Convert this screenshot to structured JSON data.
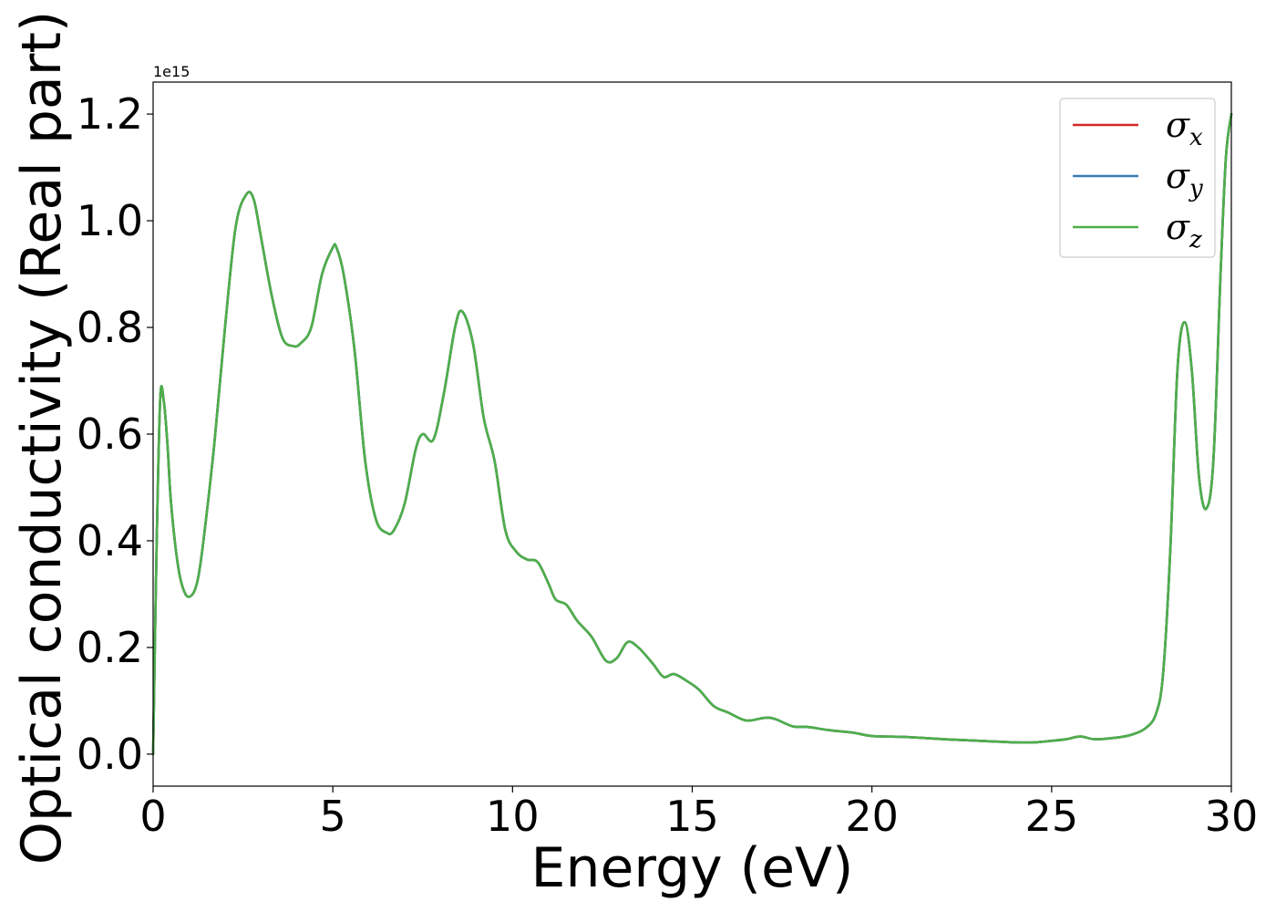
{
  "chart_data": {
    "type": "line",
    "title": "",
    "xlabel": "Energy (eV)",
    "ylabel": "Optical conductivity (Real part)",
    "y_offset_text": "1e15",
    "xlim": [
      0,
      30
    ],
    "ylim": [
      -0.06,
      1.26
    ],
    "xticks": [
      0,
      5,
      10,
      15,
      20,
      25,
      30
    ],
    "xtick_labels": [
      "0",
      "5",
      "10",
      "15",
      "20",
      "25",
      "30"
    ],
    "yticks": [
      0.0,
      0.2,
      0.4,
      0.6,
      0.8,
      1.0,
      1.2
    ],
    "ytick_labels": [
      "0.0",
      "0.2",
      "0.4",
      "0.6",
      "0.8",
      "1.0",
      "1.2"
    ],
    "grid": false,
    "legend_position": "top-right",
    "x": [
      0,
      0.1,
      0.2,
      0.3,
      0.4,
      0.5,
      0.7,
      0.9,
      1.1,
      1.25,
      1.4,
      1.7,
      2.0,
      2.3,
      2.6,
      2.8,
      3.0,
      3.3,
      3.6,
      3.9,
      4.1,
      4.4,
      4.7,
      5.0,
      5.1,
      5.3,
      5.6,
      5.9,
      6.2,
      6.5,
      6.7,
      7.0,
      7.3,
      7.5,
      7.8,
      8.1,
      8.4,
      8.6,
      8.9,
      9.2,
      9.5,
      9.8,
      10.1,
      10.4,
      10.7,
      11.0,
      11.2,
      11.5,
      11.8,
      12.2,
      12.6,
      12.9,
      13.2,
      13.5,
      13.9,
      14.2,
      14.5,
      14.9,
      15.2,
      15.6,
      16.0,
      16.5,
      17.0,
      17.3,
      17.8,
      18.2,
      18.8,
      19.5,
      20.0,
      21.0,
      22.0,
      23.0,
      24.0,
      24.5,
      25.0,
      25.4,
      25.8,
      26.2,
      26.8,
      27.2,
      27.6,
      27.9,
      28.1,
      28.3,
      28.5,
      28.7,
      28.9,
      29.1,
      29.3,
      29.5,
      29.7,
      29.85,
      30.0
    ],
    "series": [
      {
        "name": "σ_x",
        "label_base": "σ",
        "label_sub": "x",
        "color": "#d62728",
        "y": [
          0.0,
          0.4,
          0.67,
          0.66,
          0.58,
          0.47,
          0.35,
          0.3,
          0.3,
          0.33,
          0.4,
          0.58,
          0.8,
          0.99,
          1.05,
          1.04,
          0.97,
          0.86,
          0.78,
          0.765,
          0.77,
          0.8,
          0.9,
          0.95,
          0.95,
          0.9,
          0.76,
          0.55,
          0.44,
          0.415,
          0.42,
          0.47,
          0.57,
          0.6,
          0.59,
          0.68,
          0.8,
          0.83,
          0.77,
          0.63,
          0.55,
          0.42,
          0.38,
          0.365,
          0.36,
          0.32,
          0.29,
          0.28,
          0.25,
          0.22,
          0.175,
          0.18,
          0.21,
          0.2,
          0.17,
          0.145,
          0.15,
          0.135,
          0.12,
          0.09,
          0.078,
          0.063,
          0.068,
          0.066,
          0.052,
          0.051,
          0.045,
          0.04,
          0.034,
          0.032,
          0.028,
          0.025,
          0.022,
          0.022,
          0.025,
          0.028,
          0.033,
          0.028,
          0.031,
          0.036,
          0.048,
          0.075,
          0.15,
          0.38,
          0.72,
          0.81,
          0.72,
          0.52,
          0.46,
          0.55,
          0.9,
          1.12,
          1.2
        ]
      },
      {
        "name": "σ_y",
        "label_base": "σ",
        "label_sub": "y",
        "color": "#377eb8",
        "y": [
          0.0,
          0.4,
          0.67,
          0.66,
          0.58,
          0.47,
          0.35,
          0.3,
          0.3,
          0.33,
          0.4,
          0.58,
          0.8,
          0.99,
          1.05,
          1.04,
          0.97,
          0.86,
          0.78,
          0.765,
          0.77,
          0.8,
          0.9,
          0.95,
          0.95,
          0.9,
          0.76,
          0.55,
          0.44,
          0.415,
          0.42,
          0.47,
          0.57,
          0.6,
          0.59,
          0.68,
          0.8,
          0.83,
          0.77,
          0.63,
          0.55,
          0.42,
          0.38,
          0.365,
          0.36,
          0.32,
          0.29,
          0.28,
          0.25,
          0.22,
          0.175,
          0.18,
          0.21,
          0.2,
          0.17,
          0.145,
          0.15,
          0.135,
          0.12,
          0.09,
          0.078,
          0.063,
          0.068,
          0.066,
          0.052,
          0.051,
          0.045,
          0.04,
          0.034,
          0.032,
          0.028,
          0.025,
          0.022,
          0.022,
          0.025,
          0.028,
          0.033,
          0.028,
          0.031,
          0.036,
          0.048,
          0.075,
          0.15,
          0.38,
          0.72,
          0.81,
          0.72,
          0.52,
          0.46,
          0.55,
          0.9,
          1.12,
          1.2
        ]
      },
      {
        "name": "σ_z",
        "label_base": "σ",
        "label_sub": "z",
        "color": "#4daf4a",
        "y": [
          0.0,
          0.4,
          0.67,
          0.66,
          0.58,
          0.47,
          0.35,
          0.3,
          0.3,
          0.33,
          0.4,
          0.58,
          0.8,
          0.99,
          1.05,
          1.04,
          0.97,
          0.86,
          0.78,
          0.765,
          0.77,
          0.8,
          0.9,
          0.95,
          0.95,
          0.9,
          0.76,
          0.55,
          0.44,
          0.415,
          0.42,
          0.47,
          0.57,
          0.6,
          0.59,
          0.68,
          0.8,
          0.83,
          0.77,
          0.63,
          0.55,
          0.42,
          0.38,
          0.365,
          0.36,
          0.32,
          0.29,
          0.28,
          0.25,
          0.22,
          0.175,
          0.18,
          0.21,
          0.2,
          0.17,
          0.145,
          0.15,
          0.135,
          0.12,
          0.09,
          0.078,
          0.063,
          0.068,
          0.066,
          0.052,
          0.051,
          0.045,
          0.04,
          0.034,
          0.032,
          0.028,
          0.025,
          0.022,
          0.022,
          0.025,
          0.028,
          0.033,
          0.028,
          0.031,
          0.036,
          0.048,
          0.075,
          0.15,
          0.38,
          0.72,
          0.81,
          0.72,
          0.52,
          0.46,
          0.55,
          0.9,
          1.12,
          1.2
        ]
      }
    ]
  }
}
